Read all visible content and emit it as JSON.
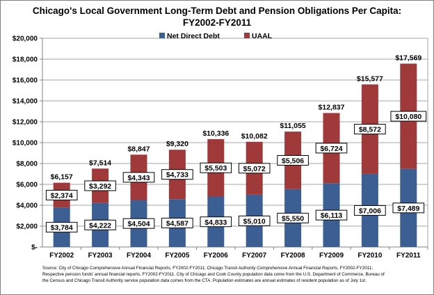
{
  "title": {
    "line1": "Chicago's Local Government Long-Term Debt and Pension Obligations Per Capita:",
    "line2": "FY2002-FY2011"
  },
  "colors": {
    "net_direct_debt": "#3b5f93",
    "uaal": "#a0393a",
    "grid": "#a6a6a6",
    "axis": "#808080"
  },
  "chart_data": {
    "type": "bar",
    "stacked": true,
    "categories": [
      "FY2002",
      "FY2003",
      "FY2004",
      "FY2005",
      "FY2006",
      "FY2007",
      "FY2008",
      "FY2009",
      "FY2010",
      "FY2011"
    ],
    "series": [
      {
        "name": "Net Direct Debt",
        "values": [
          3784,
          4222,
          4504,
          4587,
          4833,
          5010,
          5550,
          6113,
          7006,
          7489
        ],
        "labels": [
          "$3,784",
          "$4,222",
          "$4,504",
          "$4,587",
          "$4,833",
          "$5,010",
          "$5,550",
          "$6,113",
          "$7,006",
          "$7,489"
        ]
      },
      {
        "name": "UAAL",
        "values": [
          2374,
          3292,
          4343,
          4733,
          5503,
          5072,
          5506,
          6724,
          8572,
          10080
        ],
        "labels": [
          "$2,374",
          "$3,292",
          "$4,343",
          "$4,733",
          "$5,503",
          "$5,072",
          "$5,506",
          "$6,724",
          "$8,572",
          "$10,080"
        ]
      }
    ],
    "totals": [
      6157,
      7514,
      8847,
      9320,
      10336,
      10082,
      11055,
      12837,
      15577,
      17569
    ],
    "total_labels": [
      "$6,157",
      "$7,514",
      "$8,847",
      "$9,320",
      "$10,336",
      "$10,082",
      "$11,055",
      "$12,837",
      "$15,577",
      "$17,569"
    ],
    "ylim": [
      0,
      20000
    ],
    "yticks": [
      0,
      2000,
      4000,
      6000,
      8000,
      10000,
      12000,
      14000,
      16000,
      18000,
      20000
    ],
    "ytick_labels": [
      "$-",
      "$2,000",
      "$4,000",
      "$6,000",
      "$8,000",
      "$10,000",
      "$12,000",
      "$14,000",
      "$16,000",
      "$18,000",
      "$20,000"
    ],
    "grid": true,
    "legend_position": "top-center"
  },
  "source": {
    "line1": "Source: City of Chicago Comprehensive Annual Financial Reports, FY2002-FY2011; Chicago Transit Authority Comprehensive Annual Financial Reports, FY2002-FY2011;",
    "line2": "Respective pension funds' annual financial reports, FY2002-FY2011. City of Chicago and Cook County population data come from the U.S. Department of Commerce, Bureau of",
    "line3": "the Census and Chicago Transit Authority service population data comes from the CTA. Population estimates are annual estimates of resident population as of July 1st."
  }
}
